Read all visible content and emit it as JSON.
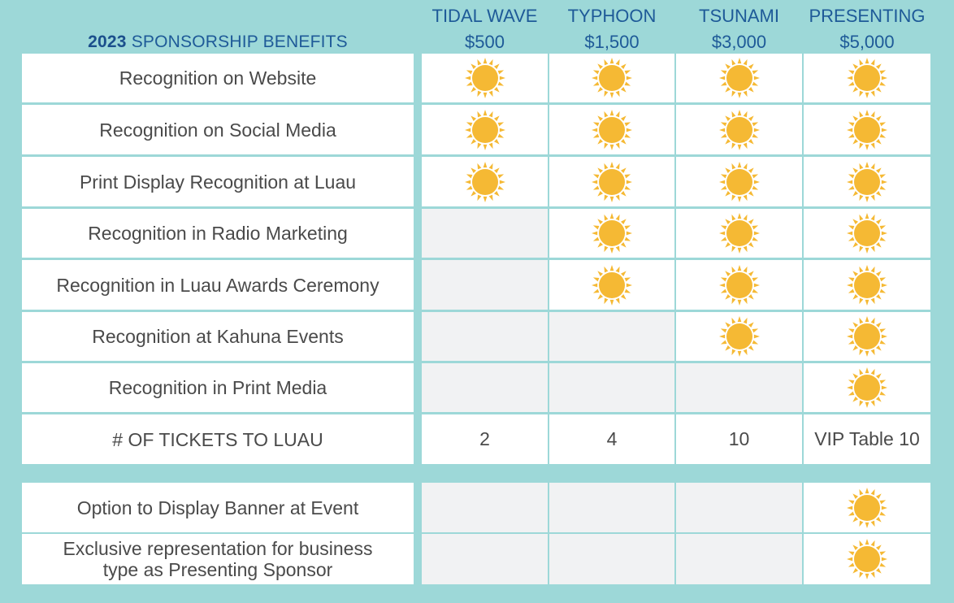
{
  "header": {
    "year": "2023",
    "title": "SPONSORSHIP BENEFITS"
  },
  "tiers": [
    {
      "name": "TIDAL WAVE",
      "price": "$500"
    },
    {
      "name": "TYPHOON",
      "price": "$1,500"
    },
    {
      "name": "TSUNAMI",
      "price": "$3,000"
    },
    {
      "name": "PRESENTING",
      "price": "$5,000"
    }
  ],
  "rows": [
    {
      "label": "Recognition on Website",
      "cells": [
        true,
        true,
        true,
        true
      ]
    },
    {
      "label": "Recognition on Social Media",
      "cells": [
        true,
        true,
        true,
        true
      ]
    },
    {
      "label": "Print Display Recognition at Luau",
      "cells": [
        true,
        true,
        true,
        true
      ]
    },
    {
      "label": "Recognition in Radio Marketing",
      "cells": [
        false,
        true,
        true,
        true
      ]
    },
    {
      "label": "Recognition in Luau Awards Ceremony",
      "cells": [
        false,
        true,
        true,
        true
      ]
    },
    {
      "label": "Recognition at Kahuna Events",
      "cells": [
        false,
        false,
        true,
        true
      ]
    },
    {
      "label": "Recognition in Print Media",
      "cells": [
        false,
        false,
        false,
        true
      ]
    },
    {
      "label": "# OF TICKETS TO LUAU",
      "cells": [
        "2",
        "4",
        "10",
        "VIP Table 10"
      ]
    },
    {
      "label": "Option to Display Banner at Event",
      "cells": [
        false,
        false,
        false,
        true
      ]
    },
    {
      "label": "Exclusive representation for business type as Presenting Sponsor",
      "cells": [
        false,
        false,
        false,
        true
      ]
    }
  ],
  "icon": "sun-icon",
  "colors": {
    "background": "#9dd8d8",
    "header_text": "#1e5a98",
    "sun": "#f5b934",
    "empty_cell": "#f1f2f3"
  }
}
